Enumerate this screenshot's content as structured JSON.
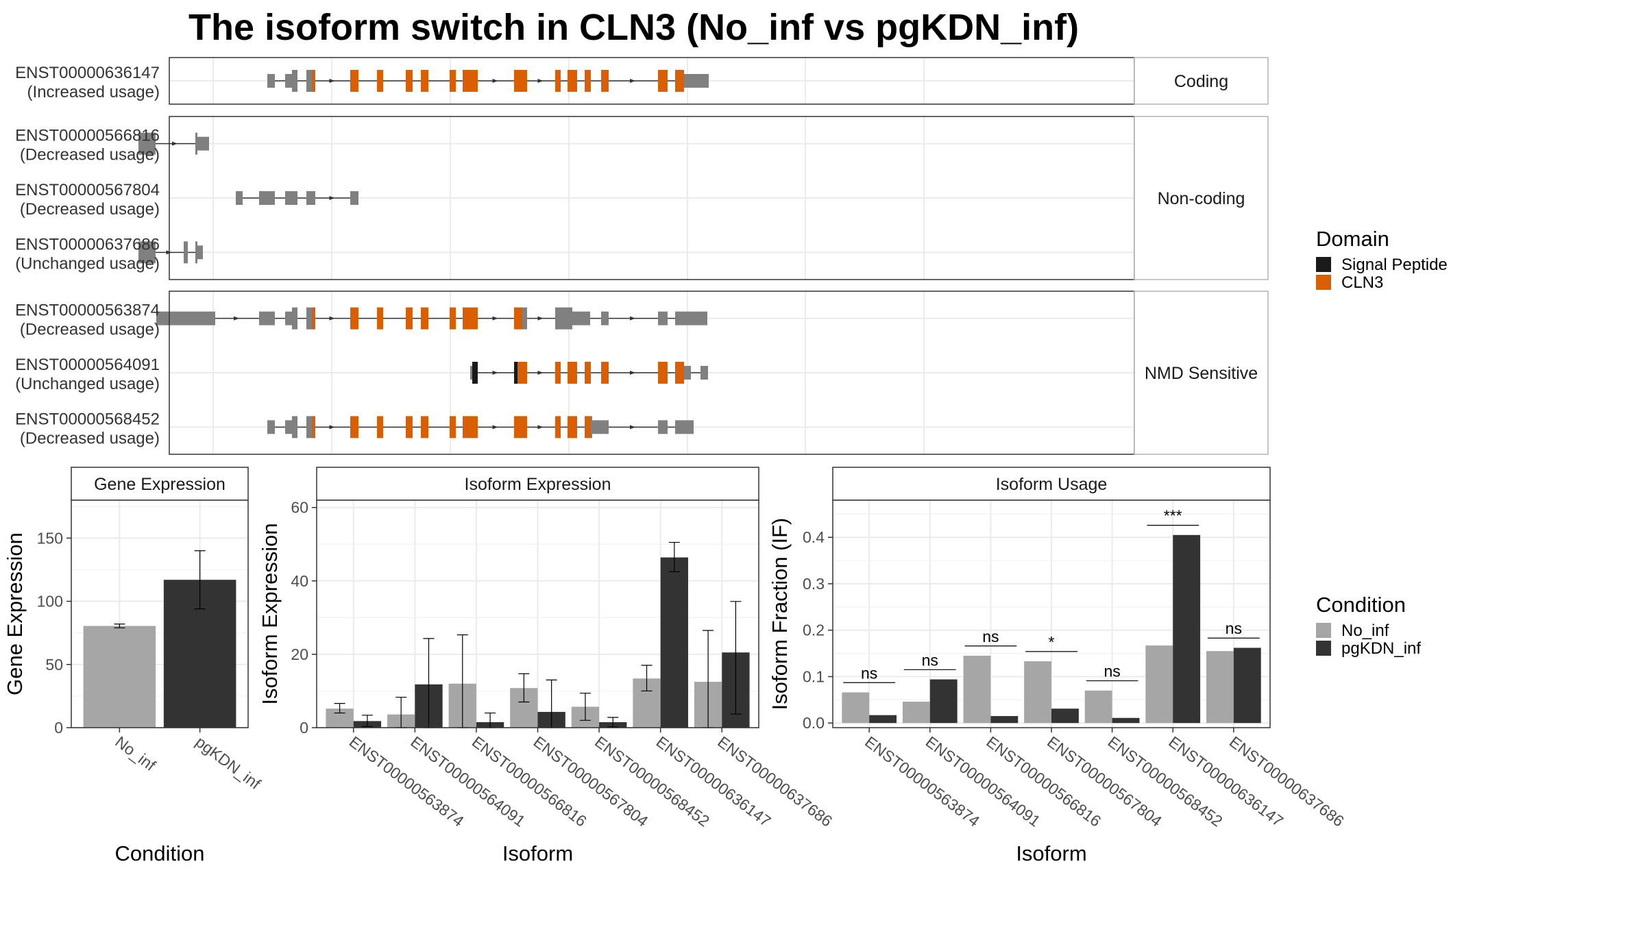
{
  "title": "The isoform switch in CLN3 (No_inf vs pgKDN_inf)",
  "colors": {
    "exon": "#808080",
    "signal_peptide": "#1a1a1a",
    "cln3": "#d95f02",
    "no_inf": "#a6a6a6",
    "pgkdn_inf": "#333333",
    "grid": "#ebebeb",
    "strip_fill": "#ffffff",
    "panel_border": "#333333"
  },
  "structure": {
    "groups": [
      {
        "label": "Coding",
        "transcripts": [
          {
            "id": "ENST00000636147",
            "usage": "(Increased usage)",
            "segments": [
              [
                390,
                401,
                "exon",
                "s"
              ],
              [
                416,
                426,
                "exon",
                "s"
              ],
              [
                426,
                434,
                "exon",
                "t"
              ],
              [
                447,
                455,
                "exon",
                "t"
              ],
              [
                455,
                460,
                "cln3",
                "t"
              ],
              [
                511,
                523,
                "cln3",
                "t"
              ],
              [
                550,
                559,
                "cln3",
                "t"
              ],
              [
                592,
                602,
                "cln3",
                "t"
              ],
              [
                614,
                625,
                "cln3",
                "t"
              ],
              [
                656,
                665,
                "cln3",
                "t"
              ],
              [
                675,
                697,
                "cln3",
                "t"
              ],
              [
                750,
                769,
                "cln3",
                "t"
              ],
              [
                810,
                818,
                "cln3",
                "t"
              ],
              [
                828,
                842,
                "cln3",
                "t"
              ],
              [
                853,
                862,
                "cln3",
                "t"
              ],
              [
                877,
                888,
                "cln3",
                "t"
              ],
              [
                960,
                974,
                "cln3",
                "t"
              ],
              [
                985,
                998,
                "cln3",
                "t"
              ],
              [
                998,
                1034,
                "exon",
                "s"
              ]
            ],
            "line": [
              390,
              1034
            ]
          }
        ]
      },
      {
        "label": "Non-coding",
        "transcripts": [
          {
            "id": "ENST00000566816",
            "usage": "(Decreased usage)",
            "segments": [
              [
                202,
                227,
                "exon",
                "t"
              ],
              [
                285,
                288,
                "exon",
                "t"
              ],
              [
                288,
                305,
                "exon",
                "s"
              ]
            ],
            "line": [
              202,
              305
            ]
          },
          {
            "id": "ENST00000567804",
            "usage": "(Decreased usage)",
            "segments": [
              [
                344,
                354,
                "exon",
                "s"
              ],
              [
                378,
                401,
                "exon",
                "s"
              ],
              [
                416,
                434,
                "exon",
                "s"
              ],
              [
                447,
                460,
                "exon",
                "s"
              ],
              [
                511,
                523,
                "exon",
                "s"
              ]
            ],
            "line": [
              344,
              523
            ]
          },
          {
            "id": "ENST00000637686",
            "usage": "(Unchanged usage)",
            "segments": [
              [
                202,
                227,
                "exon",
                "t"
              ],
              [
                268,
                274,
                "exon",
                "t"
              ],
              [
                285,
                288,
                "exon",
                "t"
              ],
              [
                288,
                296,
                "exon",
                "s"
              ]
            ],
            "line": [
              202,
              296
            ]
          }
        ]
      },
      {
        "label": "NMD Sensitive",
        "transcripts": [
          {
            "id": "ENST00000563874",
            "usage": "(Decreased usage)",
            "segments": [
              [
                228,
                314,
                "exon",
                "s"
              ],
              [
                378,
                401,
                "exon",
                "s"
              ],
              [
                416,
                426,
                "exon",
                "s"
              ],
              [
                426,
                434,
                "exon",
                "t"
              ],
              [
                447,
                455,
                "exon",
                "t"
              ],
              [
                455,
                460,
                "cln3",
                "t"
              ],
              [
                511,
                523,
                "cln3",
                "t"
              ],
              [
                550,
                559,
                "cln3",
                "t"
              ],
              [
                592,
                602,
                "cln3",
                "t"
              ],
              [
                614,
                625,
                "cln3",
                "t"
              ],
              [
                656,
                665,
                "cln3",
                "t"
              ],
              [
                675,
                697,
                "cln3",
                "t"
              ],
              [
                750,
                762,
                "cln3",
                "t"
              ],
              [
                762,
                769,
                "exon",
                "t"
              ],
              [
                810,
                835,
                "exon",
                "t"
              ],
              [
                835,
                861,
                "exon",
                "s"
              ],
              [
                877,
                888,
                "exon",
                "s"
              ],
              [
                960,
                974,
                "exon",
                "s"
              ],
              [
                985,
                1032,
                "exon",
                "s"
              ]
            ],
            "line": [
              228,
              1032
            ]
          },
          {
            "id": "ENST00000564091",
            "usage": "(Unchanged usage)",
            "segments": [
              [
                686,
                689,
                "exon",
                "s"
              ],
              [
                689,
                697,
                "signal_peptide",
                "t"
              ],
              [
                750,
                755,
                "signal_peptide",
                "t"
              ],
              [
                755,
                769,
                "cln3",
                "t"
              ],
              [
                810,
                818,
                "cln3",
                "t"
              ],
              [
                828,
                842,
                "cln3",
                "t"
              ],
              [
                853,
                862,
                "cln3",
                "t"
              ],
              [
                877,
                888,
                "cln3",
                "t"
              ],
              [
                960,
                974,
                "cln3",
                "t"
              ],
              [
                985,
                998,
                "cln3",
                "t"
              ],
              [
                998,
                1008,
                "exon",
                "s"
              ],
              [
                1022,
                1033,
                "exon",
                "s"
              ]
            ],
            "line": [
              686,
              1033
            ]
          },
          {
            "id": "ENST00000568452",
            "usage": "(Decreased usage)",
            "segments": [
              [
                390,
                401,
                "exon",
                "s"
              ],
              [
                416,
                426,
                "exon",
                "s"
              ],
              [
                426,
                434,
                "exon",
                "t"
              ],
              [
                447,
                455,
                "exon",
                "t"
              ],
              [
                455,
                460,
                "cln3",
                "t"
              ],
              [
                511,
                523,
                "cln3",
                "t"
              ],
              [
                550,
                559,
                "cln3",
                "t"
              ],
              [
                592,
                602,
                "cln3",
                "t"
              ],
              [
                614,
                625,
                "cln3",
                "t"
              ],
              [
                656,
                665,
                "cln3",
                "t"
              ],
              [
                675,
                697,
                "cln3",
                "t"
              ],
              [
                750,
                769,
                "cln3",
                "t"
              ],
              [
                810,
                818,
                "cln3",
                "t"
              ],
              [
                828,
                842,
                "cln3",
                "t"
              ],
              [
                853,
                862,
                "cln3",
                "t"
              ],
              [
                862,
                864,
                "exon",
                "t"
              ],
              [
                864,
                888,
                "exon",
                "s"
              ],
              [
                960,
                974,
                "exon",
                "s"
              ],
              [
                985,
                1012,
                "exon",
                "s"
              ]
            ],
            "line": [
              390,
              1012
            ]
          }
        ]
      }
    ]
  },
  "legend_domain": {
    "title": "Domain",
    "items": [
      {
        "label": "Signal Peptide",
        "color": "#1a1a1a"
      },
      {
        "label": "CLN3",
        "color": "#d95f02"
      }
    ]
  },
  "legend_condition": {
    "title": "Condition",
    "items": [
      {
        "label": "No_inf",
        "color": "#a6a6a6"
      },
      {
        "label": "pgKDN_inf",
        "color": "#333333"
      }
    ]
  },
  "chart_data": [
    {
      "type": "bar",
      "panel_title": "Gene Expression",
      "xlabel": "Condition",
      "ylabel": "Gene Expression",
      "ylim": [
        0,
        180
      ],
      "yticks": [
        0,
        50,
        100,
        150
      ],
      "categories": [
        "No_inf",
        "pgKDN_inf"
      ],
      "values": [
        80.5,
        117
      ],
      "err_low": [
        79,
        94
      ],
      "err_high": [
        82,
        140
      ]
    },
    {
      "type": "bar",
      "panel_title": "Isoform Expression",
      "xlabel": "Isoform",
      "ylabel": "Isoform Expression",
      "ylim": [
        0,
        62
      ],
      "yticks": [
        0,
        20,
        40,
        60
      ],
      "categories": [
        "ENST00000563874",
        "ENST00000564091",
        "ENST00000566816",
        "ENST00000567804",
        "ENST00000568452",
        "ENST00000636147",
        "ENST00000637686"
      ],
      "series": [
        {
          "name": "No_inf",
          "values": [
            5.2,
            3.6,
            12,
            10.8,
            5.7,
            13.4,
            12.5
          ],
          "err_low": [
            4,
            0,
            0,
            7,
            2,
            10,
            0
          ],
          "err_high": [
            6.6,
            8.3,
            25.3,
            14.7,
            9.4,
            17,
            26.5
          ]
        },
        {
          "name": "pgKDN_inf",
          "values": [
            1.8,
            11.8,
            1.5,
            4.3,
            1.5,
            46.4,
            20.5
          ],
          "err_low": [
            0.3,
            0,
            0,
            0,
            0.2,
            42.5,
            3.7
          ],
          "err_high": [
            3.4,
            24.3,
            4,
            13,
            2.8,
            50.5,
            34.4
          ]
        }
      ]
    },
    {
      "type": "bar",
      "panel_title": "Isoform Usage",
      "xlabel": "Isoform",
      "ylabel": "Isoform Fraction (IF)",
      "ylim": [
        -0.01,
        0.48
      ],
      "yticks": [
        0.0,
        0.1,
        0.2,
        0.3,
        0.4
      ],
      "ytick_labels": [
        "0.0",
        "0.1",
        "0.2",
        "0.3",
        "0.4"
      ],
      "categories": [
        "ENST00000563874",
        "ENST00000564091",
        "ENST00000566816",
        "ENST00000567804",
        "ENST00000568452",
        "ENST00000636147",
        "ENST00000637686"
      ],
      "series": [
        {
          "name": "No_inf",
          "values": [
            0.066,
            0.046,
            0.145,
            0.133,
            0.07,
            0.167,
            0.155
          ]
        },
        {
          "name": "pgKDN_inf",
          "values": [
            0.017,
            0.094,
            0.015,
            0.031,
            0.011,
            0.405,
            0.162
          ]
        }
      ],
      "significance": [
        "ns",
        "ns",
        "ns",
        "*",
        "ns",
        "***",
        "ns"
      ],
      "sig_y": [
        0.087,
        0.115,
        0.166,
        0.154,
        0.091,
        0.426,
        0.183
      ]
    }
  ]
}
